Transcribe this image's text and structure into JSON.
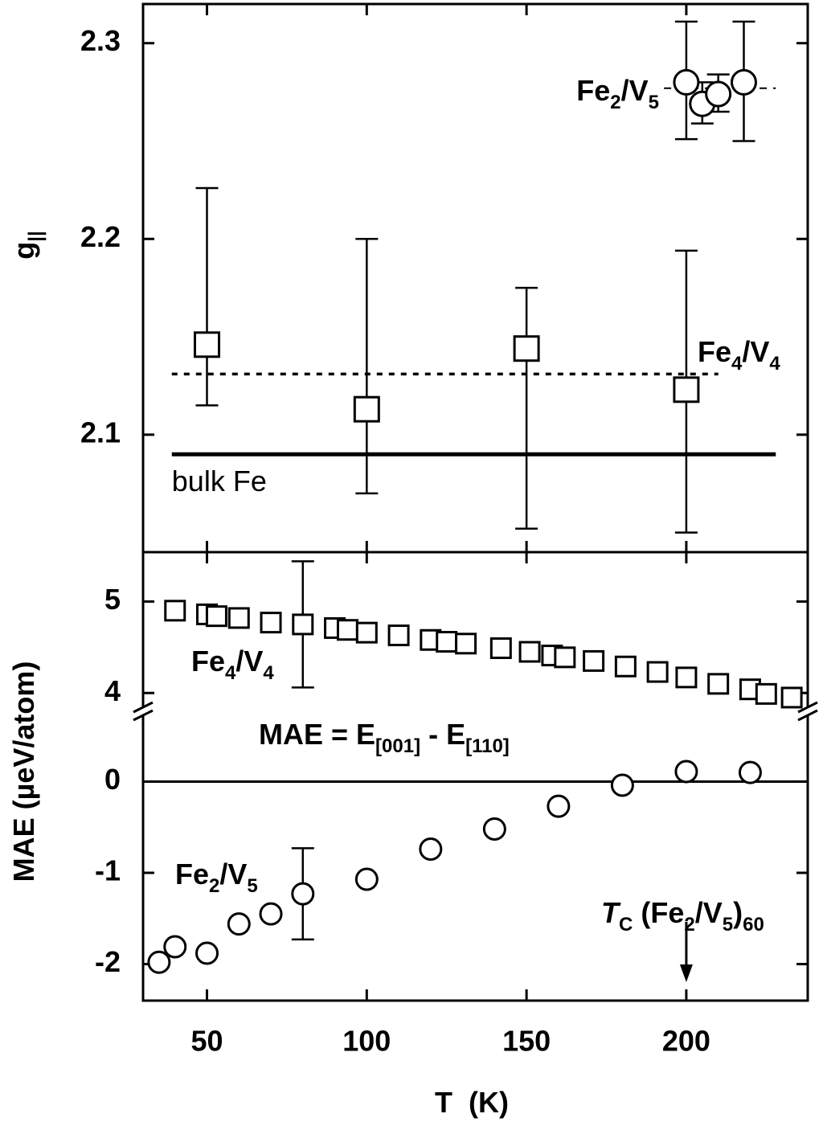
{
  "chart_data": [
    {
      "type": "scatter",
      "y_label": [
        "g",
        "||"
      ],
      "xlim": [
        30,
        238
      ],
      "xticks": [
        50,
        100,
        150,
        200
      ],
      "ylim": [
        2.04,
        2.32
      ],
      "yticks": [
        2.1,
        2.2,
        2.3
      ],
      "series": [
        {
          "label": [
            "Fe",
            "4",
            "/V",
            "4"
          ],
          "marker": "square",
          "color": "#000000",
          "x": [
            50,
            100,
            150,
            200
          ],
          "values": [
            2.146,
            2.113,
            2.144,
            2.123
          ],
          "err_plus": [
            0.08,
            0.087,
            0.031,
            0.071
          ],
          "err_minus": [
            0.031,
            0.043,
            0.092,
            0.073
          ]
        },
        {
          "label": [
            "Fe",
            "2",
            "/V",
            "5"
          ],
          "marker": "circle",
          "color": "#000000",
          "x": [
            200,
            205,
            210,
            218
          ],
          "values": [
            2.28,
            2.269,
            2.274,
            2.28
          ],
          "err_plus": [
            0.031,
            0.011,
            0.01,
            0.031
          ],
          "err_minus": [
            0.029,
            0.01,
            0.009,
            0.03
          ]
        }
      ],
      "lines": [
        {
          "label": [
            "bulk Fe"
          ],
          "style": "solid",
          "value": 2.09,
          "x": [
            39,
            228
          ]
        },
        {
          "style": "dotted",
          "value": 2.131,
          "x": [
            39,
            210
          ]
        },
        {
          "style": "dashed",
          "value": 2.277,
          "x": [
            193,
            228
          ]
        }
      ]
    },
    {
      "type": "scatter",
      "y_label": [
        "MAE (µeV/atom)"
      ],
      "x_label": [
        "T  (K)"
      ],
      "xlim": [
        30,
        238
      ],
      "xticks": [
        50,
        100,
        150,
        200
      ],
      "ylim": [
        -2.4,
        0.77
      ],
      "yticks": [
        -2,
        -1,
        0
      ],
      "ylim_upper": [
        3.8,
        5.54
      ],
      "yticks_upper": [
        4,
        5
      ],
      "series": [
        {
          "label": [
            "Fe",
            "4",
            "/V",
            "4"
          ],
          "marker": "square",
          "color": "#000000",
          "axis": "upper",
          "x": [
            40,
            50,
            53,
            60,
            70,
            80,
            90,
            94,
            100,
            110,
            120,
            125,
            131,
            142,
            151,
            158,
            162,
            171,
            181,
            191,
            200,
            210,
            220,
            225,
            233
          ],
          "values": [
            4.9,
            4.86,
            4.84,
            4.82,
            4.77,
            4.75,
            4.71,
            4.69,
            4.66,
            4.63,
            4.58,
            4.56,
            4.54,
            4.49,
            4.45,
            4.41,
            4.39,
            4.35,
            4.29,
            4.23,
            4.17,
            4.1,
            4.04,
            3.99,
            3.95
          ],
          "err": [
            null,
            null,
            null,
            null,
            null,
            0.69,
            null,
            null,
            null,
            null,
            null,
            null,
            null,
            null,
            null,
            null,
            null,
            null,
            null,
            null,
            null,
            null,
            null,
            null,
            null
          ]
        },
        {
          "label": [
            "Fe",
            "2",
            "/V",
            "5"
          ],
          "marker": "circle",
          "color": "#000000",
          "x": [
            35,
            40,
            50,
            60,
            70,
            80,
            100,
            120,
            140,
            160,
            180,
            200,
            220
          ],
          "values": [
            -1.98,
            -1.81,
            -1.88,
            -1.56,
            -1.45,
            -1.23,
            -1.07,
            -0.74,
            -0.52,
            -0.27,
            -0.04,
            0.11,
            0.1
          ],
          "err": [
            null,
            null,
            null,
            null,
            null,
            0.5,
            null,
            null,
            null,
            null,
            null,
            null,
            null
          ]
        }
      ],
      "lines": [
        {
          "style": "solid",
          "value": 0,
          "x": [
            30,
            238
          ]
        }
      ],
      "annotations": [
        {
          "text": [
            "MAE = E",
            "[001]",
            " - E",
            "[110]"
          ]
        },
        {
          "text": [
            "T",
            "C",
            " (Fe",
            "2",
            "/V",
            "5",
            ")",
            "60"
          ],
          "arrow_x": 200
        }
      ]
    }
  ]
}
